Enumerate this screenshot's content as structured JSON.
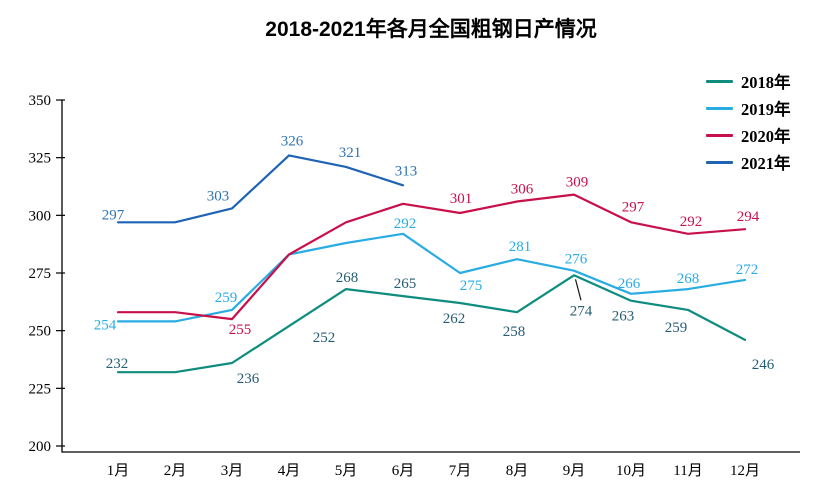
{
  "chart_data": {
    "type": "line",
    "title": "2018-2021年各月全国粗钢日产情况",
    "xlabel": "",
    "ylabel": "",
    "categories": [
      "1月",
      "2月",
      "3月",
      "4月",
      "5月",
      "6月",
      "7月",
      "8月",
      "9月",
      "10月",
      "11月",
      "12月"
    ],
    "ylim": [
      200,
      350
    ],
    "yticks": [
      200,
      225,
      250,
      275,
      300,
      325,
      350
    ],
    "grid": false,
    "legend_position": "top-right",
    "axis_color": "#000000",
    "series": [
      {
        "name": "2018年",
        "color": "#0E8C7E",
        "label_color": "#265D73",
        "values": [
          232,
          232,
          236,
          252,
          268,
          265,
          262,
          258,
          274,
          263,
          259,
          246
        ],
        "shown_labels": [
          "232",
          null,
          "236",
          "252",
          "268",
          "265",
          "262",
          "258",
          "274",
          "263",
          "259",
          "246"
        ]
      },
      {
        "name": "2019年",
        "color": "#29ACE3",
        "label_color": "#29ACE3",
        "values": [
          254,
          254,
          259,
          283,
          288,
          292,
          275,
          281,
          276,
          266,
          268,
          272
        ],
        "shown_labels": [
          "254",
          null,
          "259",
          null,
          null,
          "292",
          "275",
          "281",
          "276",
          "266",
          "268",
          "272"
        ]
      },
      {
        "name": "2020年",
        "color": "#C8104B",
        "label_color": "#C8104B",
        "values": [
          258,
          258,
          255,
          283,
          297,
          305,
          301,
          306,
          309,
          297,
          292,
          294
        ],
        "shown_labels": [
          null,
          null,
          "255",
          null,
          null,
          null,
          "301",
          "306",
          "309",
          "297",
          "292",
          "294"
        ]
      },
      {
        "name": "2021年",
        "color": "#1F63B5",
        "label_color": "#2E74B5",
        "values": [
          297,
          297,
          303,
          326,
          321,
          313
        ],
        "shown_labels": [
          "297",
          null,
          "303",
          "326",
          "321",
          "313"
        ]
      }
    ],
    "callout": {
      "series": "2018年",
      "month": "9月",
      "value": 274,
      "note": "label attached with black leader line below the point"
    }
  }
}
